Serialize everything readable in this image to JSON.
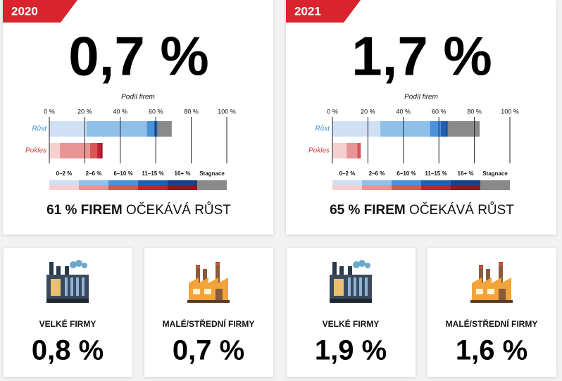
{
  "panels": [
    {
      "year": "2020",
      "headline": "0,7 %",
      "summary_bold": "61 % FIREM",
      "summary_rest": "OČEKÁVÁ RŮST"
    },
    {
      "year": "2021",
      "headline": "1,7 %",
      "summary_bold": "65 % FIREM",
      "summary_rest": "OČEKÁVÁ RŮST"
    }
  ],
  "chart_data": [
    {
      "type": "stacked-bar-horizontal",
      "xlabel": "Podíl firem",
      "categories": [
        "Růst",
        "Pokles"
      ],
      "xlim": [
        0,
        100
      ],
      "xticks": [
        {
          "value": 0,
          "label": "0 %"
        },
        {
          "value": 20,
          "label": "20 %"
        },
        {
          "value": 40,
          "label": "40 %"
        },
        {
          "value": 60,
          "label": "60 %"
        },
        {
          "value": 80,
          "label": "80 %"
        },
        {
          "value": 100,
          "label": "100 %"
        }
      ],
      "grid": true,
      "series": [
        {
          "name": "0–2 %",
          "colors": [
            "#cfe0f4",
            "#f6cfcf"
          ],
          "values": [
            21,
            6
          ]
        },
        {
          "name": "2–6 %",
          "colors": [
            "#8fc0ea",
            "#e89494"
          ],
          "values": [
            34,
            17
          ]
        },
        {
          "name": "6–10 %",
          "colors": [
            "#4a92da",
            "#d85656"
          ],
          "values": [
            4,
            4
          ]
        },
        {
          "name": "11–15 %",
          "colors": [
            "#1f62b4",
            "#c22232"
          ],
          "values": [
            2,
            2
          ]
        },
        {
          "name": "16+ %",
          "colors": [
            "#16408a",
            "#9a1222"
          ],
          "values": [
            0,
            1
          ]
        },
        {
          "name": "Stagnace",
          "colors": [
            "#8a8a8a",
            "#8a8a8a"
          ],
          "values": [
            8,
            null
          ]
        }
      ]
    },
    {
      "type": "stacked-bar-horizontal",
      "xlabel": "Podíl firem",
      "categories": [
        "Růst",
        "Pokles"
      ],
      "xlim": [
        0,
        100
      ],
      "xticks": [
        {
          "value": 0,
          "label": "0 %"
        },
        {
          "value": 20,
          "label": "20 %"
        },
        {
          "value": 40,
          "label": "40 %"
        },
        {
          "value": 60,
          "label": "60 %"
        },
        {
          "value": 80,
          "label": "80 %"
        },
        {
          "value": 100,
          "label": "100 %"
        }
      ],
      "grid": true,
      "series": [
        {
          "name": "0–2 %",
          "colors": [
            "#cfe0f4",
            "#f6cfcf"
          ],
          "values": [
            27,
            8
          ]
        },
        {
          "name": "2–6 %",
          "colors": [
            "#8fc0ea",
            "#e89494"
          ],
          "values": [
            28,
            6
          ]
        },
        {
          "name": "6–10 %",
          "colors": [
            "#4a92da",
            "#d85656"
          ],
          "values": [
            6,
            2
          ]
        },
        {
          "name": "11–15 %",
          "colors": [
            "#1f62b4",
            "#c22232"
          ],
          "values": [
            3,
            0
          ]
        },
        {
          "name": "16+ %",
          "colors": [
            "#16408a",
            "#9a1222"
          ],
          "values": [
            1,
            0
          ]
        },
        {
          "name": "Stagnace",
          "colors": [
            "#8a8a8a",
            "#8a8a8a"
          ],
          "values": [
            18,
            null
          ]
        }
      ]
    }
  ],
  "cards": [
    {
      "label": "VELKÉ FIRMY",
      "value": "0,8 %"
    },
    {
      "label": "MALÉ/STŘEDNÍ FIRMY",
      "value": "0,7 %"
    },
    {
      "label": "VELKÉ FIRMY",
      "value": "1,9 %"
    },
    {
      "label": "MALÉ/STŘEDNÍ FIRMY",
      "value": "1,6 %"
    }
  ]
}
